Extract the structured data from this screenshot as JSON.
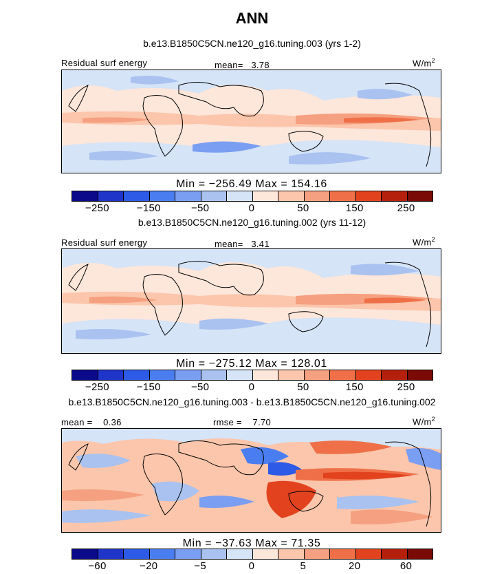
{
  "title": "ANN",
  "colorbar_colors": [
    "#0a0a8a",
    "#1f34c8",
    "#2d5ae6",
    "#4a7ef0",
    "#7a9ef2",
    "#a9c2f0",
    "#d5e4f7",
    "#fde6da",
    "#fbc6ac",
    "#f5a080",
    "#ef7048",
    "#e2431e",
    "#b5200c",
    "#7a0a06"
  ],
  "panels": [
    {
      "case_title": "b.e13.B1850C5CN.ne120_g16.tuning.003 (yrs 1-2)",
      "left_label": "Residual surf energy",
      "mid_label": "mean=   3.78",
      "units_base": "W/m",
      "units_exp": "2",
      "stats": "Min = −256.49  Max = 154.16",
      "ticks": [
        "−250",
        "−150",
        "−50",
        "0",
        "50",
        "150",
        "250"
      ]
    },
    {
      "case_title": "b.e13.B1850C5CN.ne120_g16.tuning.002 (yrs 11-12)",
      "left_label": "Residual surf energy",
      "mid_label": "mean=   3.41",
      "units_base": "W/m",
      "units_exp": "2",
      "stats": "Min = −275.12  Max = 128.01",
      "ticks": [
        "−250",
        "−150",
        "−50",
        "0",
        "50",
        "150",
        "250"
      ]
    },
    {
      "case_title": "b.e13.B1850C5CN.ne120_g16.tuning.003 - b.e13.B1850C5CN.ne120_g16.tuning.002",
      "left_label": "mean =    0.36",
      "mid_label": "rmse =    7.70",
      "units_base": "W/m",
      "units_exp": "2",
      "stats": "Min = −37.63  Max = 71.35",
      "ticks": [
        "−60",
        "−20",
        "−5",
        "0",
        "5",
        "20",
        "60"
      ]
    }
  ]
}
